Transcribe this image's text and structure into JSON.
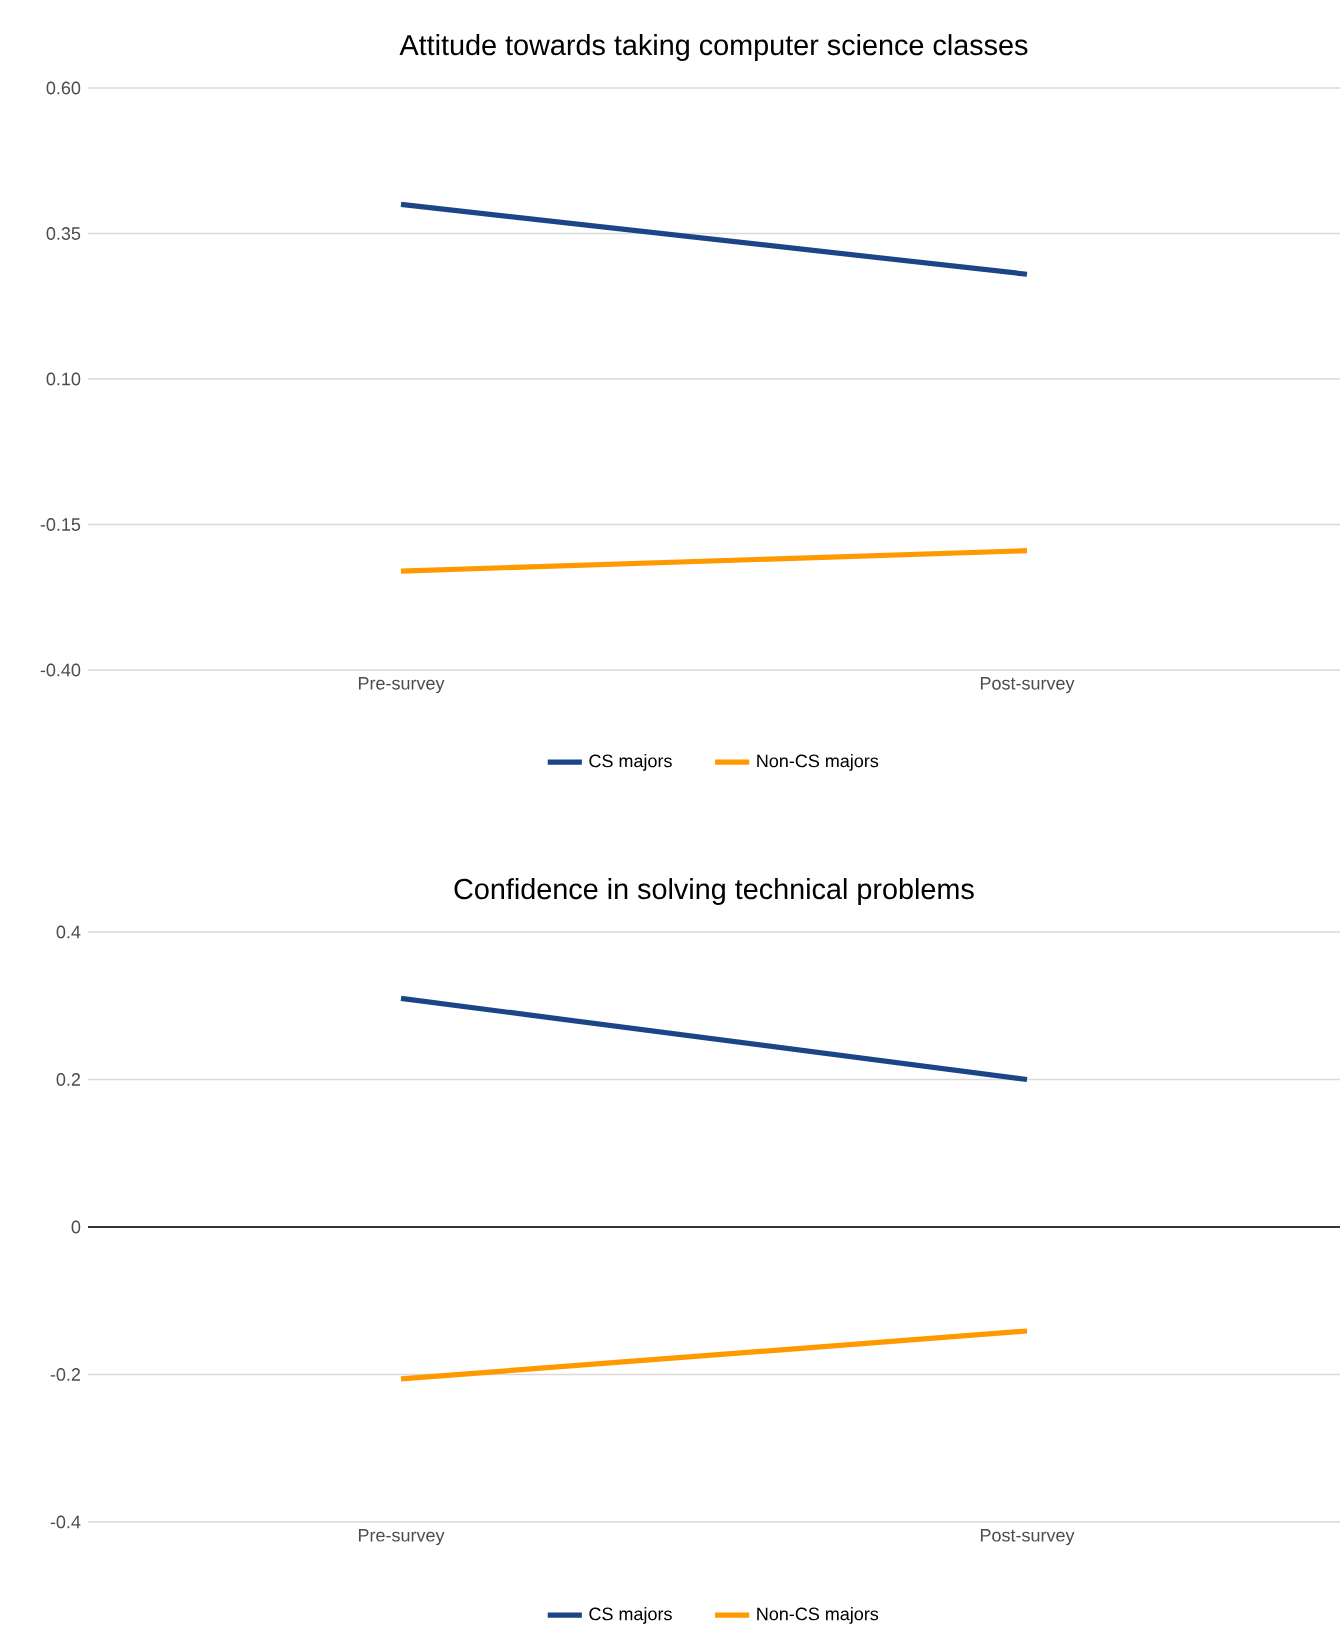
{
  "chart_data": [
    {
      "type": "line",
      "title": "Attitude towards taking computer science classes",
      "categories": [
        "Pre-survey",
        "Post-survey"
      ],
      "series": [
        {
          "name": "CS majors",
          "color": "#1c4587",
          "values": [
            0.4,
            0.28
          ]
        },
        {
          "name": "Non-CS majors",
          "color": "#ff9900",
          "values": [
            -0.23,
            -0.195
          ]
        }
      ],
      "ylim": [
        -0.4,
        0.6
      ],
      "yticks": [
        {
          "value": -0.4,
          "label": "-0.40"
        },
        {
          "value": -0.15,
          "label": "-0.15"
        },
        {
          "value": 0.1,
          "label": "0.10"
        },
        {
          "value": 0.35,
          "label": "0.35"
        },
        {
          "value": 0.6,
          "label": "0.60"
        }
      ],
      "grid": "y",
      "legend": "bottom",
      "marker": "none"
    },
    {
      "type": "line",
      "title": "Confidence in solving technical problems",
      "categories": [
        "Pre-survey",
        "Post-survey"
      ],
      "series": [
        {
          "name": "CS majors",
          "color": "#1c4587",
          "values": [
            0.31,
            0.2
          ]
        },
        {
          "name": "Non-CS majors",
          "color": "#ff9900",
          "values": [
            -0.206,
            -0.141
          ]
        }
      ],
      "ylim": [
        -0.4,
        0.4
      ],
      "yticks": [
        -0.4,
        -0.2,
        0,
        0.2,
        0.4
      ],
      "ref_lines": [
        {
          "axis": "y",
          "value": 0,
          "color": "#333333"
        }
      ],
      "grid": "y",
      "legend": "bottom",
      "marker": "none"
    }
  ]
}
